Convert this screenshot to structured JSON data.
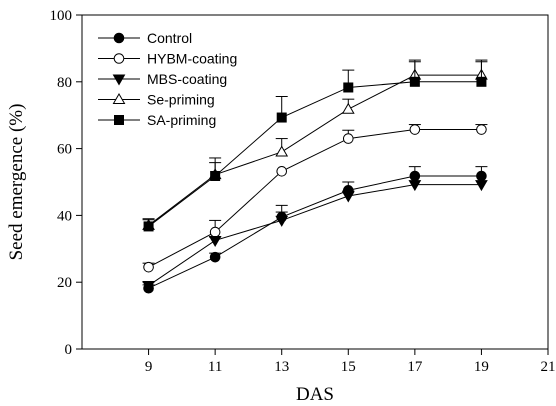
{
  "chart_data": {
    "type": "line",
    "xlabel": "DAS",
    "ylabel": "Seed emergence (%)",
    "xlim": [
      7,
      21
    ],
    "ylim": [
      0,
      100
    ],
    "xticks": [
      9,
      11,
      13,
      15,
      17,
      19,
      21
    ],
    "yticks": [
      0,
      20,
      40,
      60,
      80,
      100
    ],
    "x": [
      9,
      11,
      13,
      15,
      17,
      19
    ],
    "legend_position": "top-left",
    "grid": false,
    "series": [
      {
        "name": "Control",
        "marker": "filled-circle",
        "values": [
          18.2,
          27.5,
          39.5,
          47.5,
          51.8,
          51.8
        ],
        "errors": [
          1.0,
          1.2,
          1.5,
          2.5,
          2.8,
          2.8
        ]
      },
      {
        "name": "HYBM-coating",
        "marker": "open-circle",
        "values": [
          24.5,
          35.0,
          53.2,
          63.0,
          65.7,
          65.7
        ],
        "errors": [
          1.2,
          3.5,
          0.0,
          2.5,
          1.5,
          1.5
        ]
      },
      {
        "name": "MBS-coating",
        "marker": "filled-triangle-down",
        "values": [
          19.0,
          32.5,
          38.5,
          45.8,
          49.2,
          49.2
        ],
        "errors": [
          1.0,
          1.0,
          4.5,
          1.5,
          0.0,
          0.0
        ]
      },
      {
        "name": "Se-priming",
        "marker": "open-triangle-up",
        "values": [
          37.0,
          52.2,
          59.0,
          71.8,
          82.0,
          82.0
        ],
        "errors": [
          2.0,
          5.0,
          4.0,
          3.0,
          4.5,
          4.5
        ]
      },
      {
        "name": "SA-priming",
        "marker": "filled-square",
        "values": [
          36.7,
          51.8,
          69.3,
          78.3,
          80.0,
          80.0
        ],
        "errors": [
          2.0,
          4.0,
          6.3,
          5.2,
          6.0,
          6.0
        ]
      }
    ]
  }
}
